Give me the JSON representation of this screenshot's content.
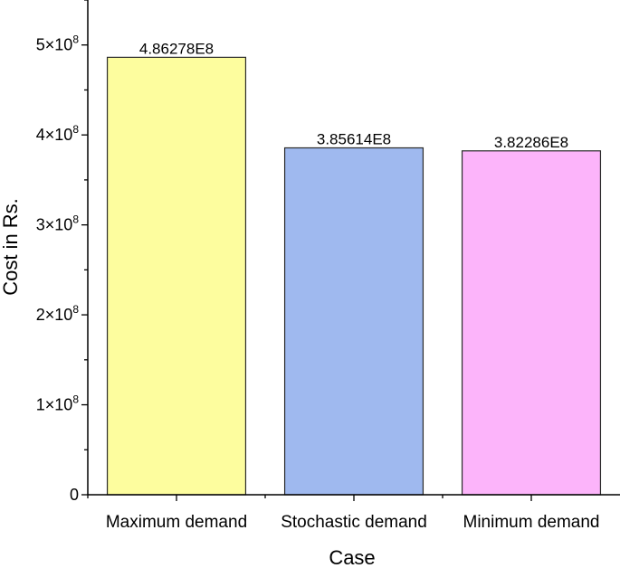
{
  "chart_data": {
    "type": "bar",
    "title": "",
    "xlabel": "Case",
    "ylabel": "Cost in Rs.",
    "categories": [
      "Maximum demand",
      "Stochastic demand",
      "Minimum demand"
    ],
    "values": [
      486278000,
      385614000,
      382286000
    ],
    "data_labels": [
      "4.86278E8",
      "3.85614E8",
      "3.82286E8"
    ],
    "colors": [
      "#fdfd9e",
      "#9fb9ef",
      "#fcb4fa"
    ],
    "edge_color": "#2b2b2b",
    "ylim": [
      0,
      550000000
    ],
    "yticks": [
      0,
      100000000,
      200000000,
      300000000,
      400000000,
      500000000
    ],
    "ytick_labels": [
      {
        "mantissa": "0",
        "exp": ""
      },
      {
        "mantissa": "1×10",
        "exp": "8"
      },
      {
        "mantissa": "2×10",
        "exp": "8"
      },
      {
        "mantissa": "3×10",
        "exp": "8"
      },
      {
        "mantissa": "4×10",
        "exp": "8"
      },
      {
        "mantissa": "5×10",
        "exp": "8"
      }
    ],
    "grid": false,
    "legend": "none"
  }
}
